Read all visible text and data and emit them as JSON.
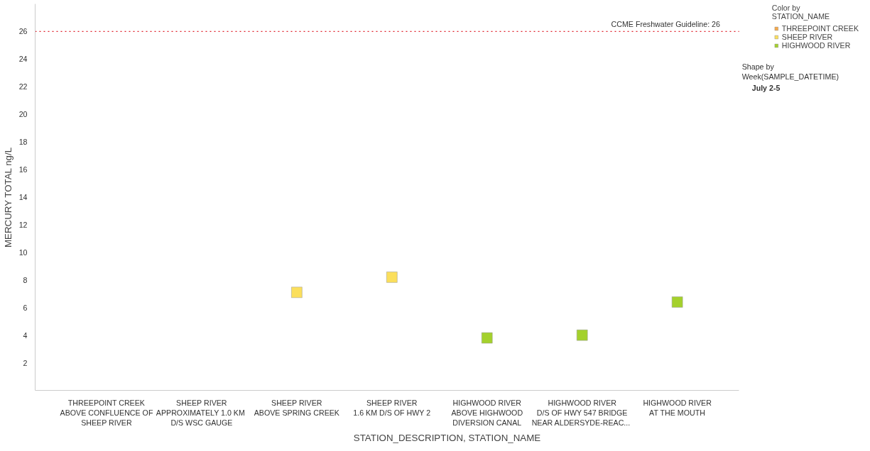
{
  "chart_data": {
    "type": "scatter",
    "xlabel": "STATION_DESCRIPTION, STATION_NAME",
    "ylabel": "MERCURY TOTAL ng/L",
    "categories": [
      "THREEPOINT CREEK\nABOVE CONFLUENCE OF\nSHEEP RIVER",
      "SHEEP RIVER\nAPPROXIMATELY 1.0  KM\nD/S WSC GAUGE",
      "SHEEP RIVER\nABOVE SPRING CREEK",
      "SHEEP RIVER\n1.6 KM D/S OF HWY 2",
      "HIGHWOOD RIVER\nABOVE HIGHWOOD\nDIVERSION CANAL",
      "HIGHWOOD RIVER\nD/S OF HWY 547 BRIDGE\nNEAR  ALDERSYDE-REAC...",
      "HIGHWOOD RIVER\nAT THE MOUTH"
    ],
    "series": [
      {
        "name": "THREEPOINT CREEK",
        "color": "#f5a94a",
        "values": [
          null,
          null,
          null,
          null,
          null,
          null,
          null
        ]
      },
      {
        "name": "SHEEP RIVER",
        "color": "#fbdf5c",
        "values": [
          null,
          null,
          7.1,
          8.2,
          null,
          null,
          null
        ]
      },
      {
        "name": "HIGHWOOD RIVER",
        "color": "#a4d12c",
        "values": [
          null,
          null,
          null,
          null,
          3.8,
          4.0,
          6.4
        ]
      }
    ],
    "ylim": [
      0,
      28
    ],
    "yticks": [
      2,
      4,
      6,
      8,
      10,
      12,
      14,
      16,
      18,
      20,
      22,
      24,
      26
    ],
    "ref_lines": [
      {
        "axis": "y",
        "value": 26,
        "label": "CCME Freshwater Guideline: 26",
        "color": "#e0202a",
        "line_style": "dotted"
      }
    ],
    "legend_title": "Color by\nSTATION_NAME",
    "annotations": [
      "Shape by\nWeek(SAMPLE_DATETIME)",
      "July 2-5"
    ],
    "marker": "square",
    "grid": false,
    "legend": "top right"
  }
}
